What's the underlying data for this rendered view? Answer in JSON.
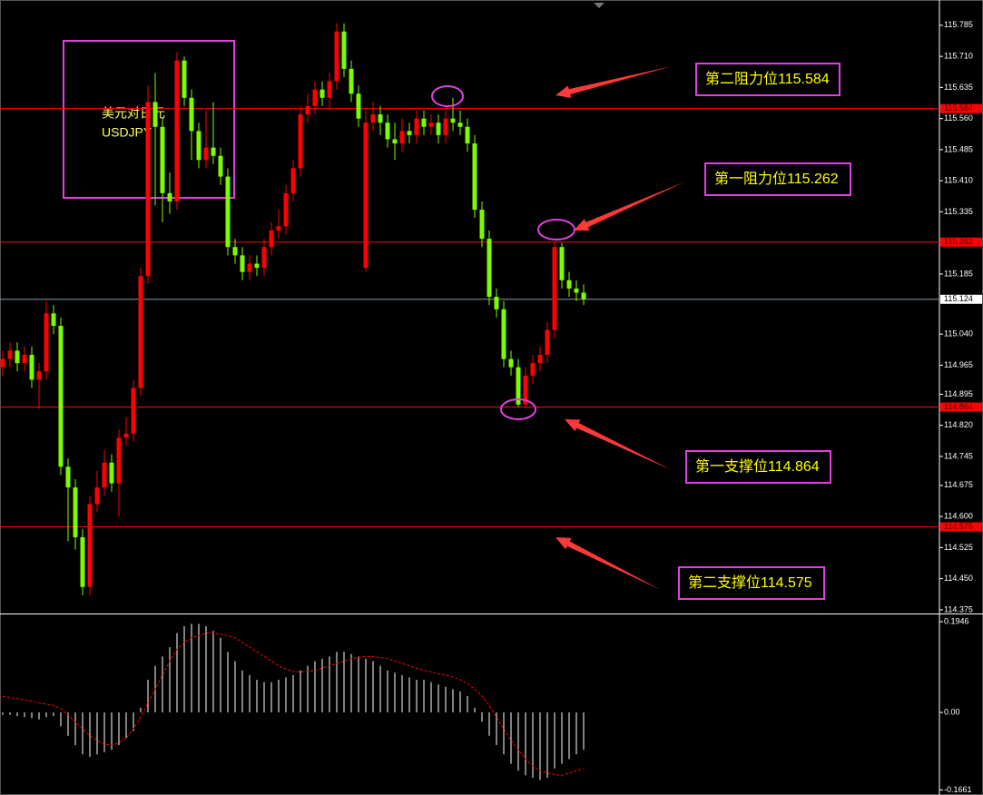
{
  "chart_data": [
    {
      "type": "candlestick",
      "title": "美元对日元",
      "subtitle": "USDJPY",
      "open": [
        114.96,
        114.98,
        115.0,
        114.97,
        114.99,
        114.93,
        114.95,
        115.09,
        115.06,
        114.72,
        114.67,
        114.55,
        114.43,
        114.63,
        114.67,
        114.73,
        114.68,
        114.79,
        114.8,
        114.91,
        115.18,
        115.6,
        115.54,
        115.38,
        115.36,
        115.7,
        115.61,
        115.53,
        115.46,
        115.49,
        115.47,
        115.42,
        115.25,
        115.23,
        115.19,
        115.21,
        115.2,
        115.25,
        115.29,
        115.3,
        115.38,
        115.44,
        115.57,
        115.59,
        115.63,
        115.61,
        115.65,
        115.77,
        115.68,
        115.62,
        115.2,
        115.55,
        115.57,
        115.55,
        115.51,
        115.5,
        115.53,
        115.52,
        115.56,
        115.54,
        115.55,
        115.52,
        115.56,
        115.55,
        115.54,
        115.5,
        115.34,
        115.27,
        115.13,
        115.1,
        114.98,
        114.96,
        114.87,
        114.94,
        114.97,
        114.99,
        115.05,
        115.25,
        115.17,
        115.15,
        115.14
      ],
      "high": [
        115.0,
        115.02,
        115.02,
        115.01,
        115.01,
        114.97,
        115.12,
        115.11,
        115.08,
        114.74,
        114.69,
        114.57,
        114.65,
        114.71,
        114.76,
        114.75,
        114.81,
        114.84,
        114.93,
        115.2,
        115.64,
        115.67,
        115.56,
        115.43,
        115.72,
        115.71,
        115.63,
        115.55,
        115.58,
        115.6,
        115.49,
        115.44,
        115.27,
        115.25,
        115.23,
        115.23,
        115.27,
        115.31,
        115.34,
        115.4,
        115.46,
        115.59,
        115.62,
        115.65,
        115.65,
        115.67,
        115.79,
        115.79,
        115.7,
        115.64,
        115.58,
        115.6,
        115.59,
        115.57,
        115.55,
        115.56,
        115.55,
        115.58,
        115.58,
        115.57,
        115.57,
        115.58,
        115.61,
        115.58,
        115.56,
        115.52,
        115.36,
        115.29,
        115.15,
        115.12,
        115.0,
        114.98,
        114.96,
        114.99,
        115.01,
        115.07,
        115.262,
        115.26,
        115.19,
        115.17,
        115.16
      ],
      "low": [
        114.94,
        114.96,
        114.95,
        114.95,
        114.91,
        114.86,
        114.93,
        115.04,
        114.7,
        114.54,
        114.52,
        114.41,
        114.41,
        114.61,
        114.65,
        114.66,
        114.6,
        114.77,
        114.78,
        114.89,
        115.16,
        115.35,
        115.31,
        115.33,
        115.34,
        115.59,
        115.46,
        115.44,
        115.44,
        115.45,
        115.4,
        115.23,
        115.21,
        115.17,
        115.17,
        115.18,
        115.18,
        115.23,
        115.27,
        115.28,
        115.36,
        115.42,
        115.55,
        115.57,
        115.59,
        115.58,
        115.63,
        115.66,
        115.6,
        115.54,
        115.19,
        115.53,
        115.52,
        115.49,
        115.46,
        115.48,
        115.5,
        115.5,
        115.52,
        115.52,
        115.5,
        115.5,
        115.53,
        115.52,
        115.48,
        115.32,
        115.25,
        115.11,
        115.08,
        114.96,
        114.94,
        114.864,
        114.86,
        114.92,
        114.95,
        114.97,
        115.03,
        115.15,
        115.13,
        115.12,
        115.11
      ],
      "close": [
        114.98,
        115.0,
        114.97,
        114.99,
        114.93,
        114.95,
        115.09,
        115.06,
        114.72,
        114.67,
        114.55,
        114.43,
        114.63,
        114.67,
        114.73,
        114.68,
        114.79,
        114.8,
        114.91,
        115.18,
        115.6,
        115.54,
        115.38,
        115.36,
        115.7,
        115.61,
        115.53,
        115.46,
        115.49,
        115.47,
        115.42,
        115.25,
        115.23,
        115.19,
        115.21,
        115.2,
        115.25,
        115.29,
        115.3,
        115.38,
        115.44,
        115.57,
        115.59,
        115.63,
        115.61,
        115.65,
        115.77,
        115.68,
        115.62,
        115.56,
        115.55,
        115.57,
        115.55,
        115.51,
        115.5,
        115.53,
        115.52,
        115.56,
        115.54,
        115.55,
        115.52,
        115.56,
        115.55,
        115.54,
        115.5,
        115.34,
        115.27,
        115.13,
        115.1,
        114.98,
        114.96,
        114.87,
        114.94,
        114.97,
        114.99,
        115.05,
        115.25,
        115.17,
        115.15,
        115.14,
        115.124
      ],
      "up_color": "#ff0000",
      "down_color": "#7cfc00",
      "ylim": [
        114.366,
        115.846
      ],
      "yticks": [
        115.785,
        {
          "value": 115.71,
          "label": "115.710"
        },
        115.635,
        {
          "value": 115.56,
          "label": "115.560"
        },
        115.485,
        {
          "value": 115.41,
          "label": "115.410"
        },
        115.335,
        115.185,
        {
          "value": 115.04,
          "label": "115.040"
        },
        114.965,
        114.895,
        {
          "value": 114.82,
          "label": "114.820"
        },
        114.745,
        114.675,
        {
          "value": 114.6,
          "label": "114.600"
        },
        114.525,
        {
          "value": 114.45,
          "label": "114.450"
        },
        114.375
      ],
      "levels": [
        115.584,
        115.262,
        114.864,
        114.575
      ],
      "level_color": "#ff0000",
      "current_price": 115.124,
      "current_color": "#8a9aaa",
      "annotations": [
        "第二阻力位115.584",
        "第一阻力位115.262",
        "第一支撑位114.864",
        "第二支撑位114.575"
      ]
    },
    {
      "type": "macd",
      "histogram": [
        -0.005,
        -0.005,
        -0.008,
        -0.01,
        -0.012,
        -0.015,
        -0.01,
        -0.008,
        -0.03,
        -0.05,
        -0.07,
        -0.09,
        -0.095,
        -0.09,
        -0.085,
        -0.08,
        -0.07,
        -0.055,
        -0.04,
        0.01,
        0.07,
        0.1,
        0.12,
        0.14,
        0.17,
        0.185,
        0.19,
        0.19,
        0.185,
        0.175,
        0.16,
        0.13,
        0.11,
        0.09,
        0.08,
        0.07,
        0.065,
        0.065,
        0.07,
        0.075,
        0.08,
        0.09,
        0.1,
        0.11,
        0.115,
        0.12,
        0.13,
        0.13,
        0.125,
        0.12,
        0.115,
        0.11,
        0.1,
        0.09,
        0.085,
        0.08,
        0.075,
        0.07,
        0.07,
        0.065,
        0.06,
        0.055,
        0.05,
        0.045,
        0.035,
        0.01,
        -0.02,
        -0.05,
        -0.07,
        -0.09,
        -0.11,
        -0.125,
        -0.135,
        -0.14,
        -0.145,
        -0.14,
        -0.12,
        -0.11,
        -0.1,
        -0.09,
        -0.08
      ],
      "histogram_color": "#ffffff",
      "signal": [
        0.035,
        0.032,
        0.03,
        0.027,
        0.024,
        0.02,
        0.018,
        0.015,
        0.008,
        -0.005,
        -0.02,
        -0.035,
        -0.05,
        -0.06,
        -0.068,
        -0.07,
        -0.065,
        -0.055,
        -0.035,
        -0.01,
        0.02,
        0.05,
        0.08,
        0.11,
        0.135,
        0.15,
        0.16,
        0.165,
        0.17,
        0.17,
        0.168,
        0.165,
        0.16,
        0.15,
        0.14,
        0.13,
        0.12,
        0.11,
        0.1,
        0.093,
        0.088,
        0.087,
        0.088,
        0.09,
        0.095,
        0.1,
        0.105,
        0.11,
        0.115,
        0.118,
        0.12,
        0.12,
        0.118,
        0.115,
        0.11,
        0.105,
        0.1,
        0.095,
        0.09,
        0.087,
        0.083,
        0.08,
        0.076,
        0.07,
        0.062,
        0.05,
        0.035,
        0.015,
        -0.01,
        -0.035,
        -0.06,
        -0.08,
        -0.1,
        -0.115,
        -0.125,
        -0.13,
        -0.133,
        -0.135,
        -0.13,
        -0.125,
        -0.12
      ],
      "signal_color": "#ff0000",
      "ylim": [
        -0.177,
        0.2102
      ],
      "yticks": [
        0.1946,
        {
          "value": 0,
          "label": "0.00"
        },
        -0.1661
      ]
    }
  ]
}
